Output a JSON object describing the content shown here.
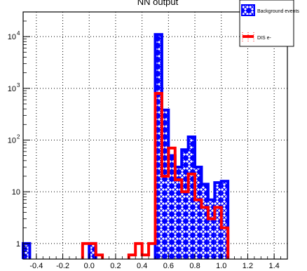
{
  "chart_data": {
    "type": "histogram",
    "title": "NN output",
    "xlabel": "",
    "ylabel": "",
    "y_scale": "log",
    "xlim": [
      -0.5,
      1.5
    ],
    "ylim": [
      0.5,
      30000
    ],
    "grid": true,
    "bin_width": 0.05,
    "x_ticks": [
      -0.4,
      -0.2,
      0.0,
      0.2,
      0.4,
      0.6,
      0.8,
      1.0,
      1.2,
      1.4
    ],
    "x_tick_labels": [
      "-0.4",
      "-0.2",
      "0.0",
      "0.2",
      "0.4",
      "0.6",
      "0.8",
      "1.0",
      "1.2",
      "1.4"
    ],
    "y_ticks": [
      1,
      10,
      100,
      1000,
      10000
    ],
    "y_tick_labels": [
      {
        "base": "1",
        "exp": ""
      },
      {
        "base": "10",
        "exp": ""
      },
      {
        "base": "10",
        "exp": "2"
      },
      {
        "base": "10",
        "exp": "3"
      },
      {
        "base": "10",
        "exp": "4"
      }
    ],
    "legend": {
      "placement": "top-right",
      "entries": [
        {
          "label": "Background events",
          "color": "#0000ff",
          "style": "hatched-fill"
        },
        {
          "label": "DIS e-",
          "color": "#ff0000",
          "style": "line"
        }
      ]
    },
    "series": [
      {
        "name": "Background events",
        "color": "#0000ff",
        "bins": [
          {
            "x0": -0.5,
            "x1": -0.45,
            "value": 1
          },
          {
            "x0": 0.0,
            "x1": 0.05,
            "value": 1
          },
          {
            "x0": 0.5,
            "x1": 0.55,
            "value": 11000
          },
          {
            "x0": 0.55,
            "x1": 0.6,
            "value": 380
          },
          {
            "x0": 0.6,
            "x1": 0.65,
            "value": 50
          },
          {
            "x0": 0.65,
            "x1": 0.7,
            "value": 30
          },
          {
            "x0": 0.7,
            "x1": 0.75,
            "value": 65
          },
          {
            "x0": 0.75,
            "x1": 0.8,
            "value": 115
          },
          {
            "x0": 0.8,
            "x1": 0.85,
            "value": 30
          },
          {
            "x0": 0.85,
            "x1": 0.9,
            "value": 14
          },
          {
            "x0": 0.9,
            "x1": 0.95,
            "value": 7
          },
          {
            "x0": 0.95,
            "x1": 1.0,
            "value": 15
          },
          {
            "x0": 1.0,
            "x1": 1.05,
            "value": 16
          }
        ]
      },
      {
        "name": "DIS e-",
        "color": "#ff0000",
        "bins": [
          {
            "x0": -0.05,
            "x1": 0.05,
            "value": 1
          },
          {
            "x0": 0.05,
            "x1": 0.1,
            "value": 0.6
          },
          {
            "x0": 0.3,
            "x1": 0.35,
            "value": 0.6
          },
          {
            "x0": 0.35,
            "x1": 0.4,
            "value": 1
          },
          {
            "x0": 0.4,
            "x1": 0.45,
            "value": 0.6
          },
          {
            "x0": 0.45,
            "x1": 0.5,
            "value": 1
          },
          {
            "x0": 0.5,
            "x1": 0.55,
            "value": 800
          },
          {
            "x0": 0.55,
            "x1": 0.6,
            "value": 20
          },
          {
            "x0": 0.6,
            "x1": 0.65,
            "value": 70
          },
          {
            "x0": 0.65,
            "x1": 0.7,
            "value": 17
          },
          {
            "x0": 0.7,
            "x1": 0.75,
            "value": 10
          },
          {
            "x0": 0.75,
            "x1": 0.8,
            "value": 22
          },
          {
            "x0": 0.8,
            "x1": 0.85,
            "value": 7
          },
          {
            "x0": 0.85,
            "x1": 0.9,
            "value": 5
          },
          {
            "x0": 0.9,
            "x1": 0.95,
            "value": 3
          },
          {
            "x0": 0.95,
            "x1": 1.0,
            "value": 5
          },
          {
            "x0": 1.0,
            "x1": 1.05,
            "value": 2
          }
        ]
      }
    ]
  }
}
